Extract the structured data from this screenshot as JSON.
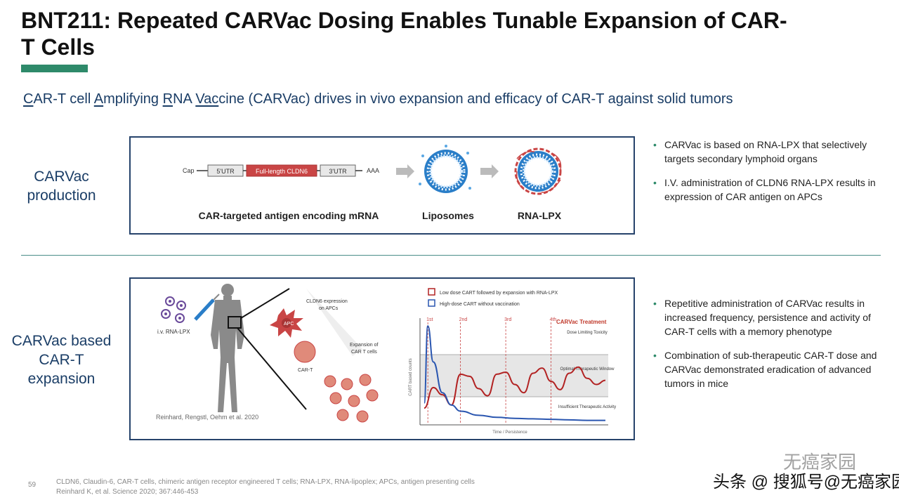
{
  "header": {
    "title": "BNT211: Repeated CARVac Dosing Enables Tunable Expansion of CAR-T Cells"
  },
  "subtitle": {
    "segments": [
      {
        "text": "C",
        "u": true
      },
      {
        "text": "AR-T cell ",
        "u": false
      },
      {
        "text": "A",
        "u": true
      },
      {
        "text": "mplifying  ",
        "u": false
      },
      {
        "text": "R",
        "u": true
      },
      {
        "text": "NA ",
        "u": false
      },
      {
        "text": "Vac",
        "u": true
      },
      {
        "text": "cine (CARVac) drives in vivo expansion and efficacy of CAR-T against solid tumors",
        "u": false
      }
    ]
  },
  "sections": {
    "production_label": "CARVac production",
    "expansion_label": "CARVac based CAR-T expansion"
  },
  "production_panel": {
    "mrna": {
      "cap": "Cap",
      "utr5": "5'UTR",
      "gene": "Full-length CLDN6",
      "utr3": "3'UTR",
      "polya": "AAA"
    },
    "caption_mrna": "CAR-targeted antigen encoding mRNA",
    "caption_lipo": "Liposomes",
    "caption_lpx": "RNA-LPX"
  },
  "expansion_panel": {
    "iv_label": "i.v. RNA-LPX",
    "cldn6_label_1": "CLDN6 expression",
    "cldn6_label_2": "on APCs",
    "apc_label": "APC",
    "cart_label": "CAR-T",
    "expansion_label_1": "Expansion of",
    "expansion_label_2": "CAR T cells",
    "citation": "Reinhard, Rengstl, Oehm et al. 2020"
  },
  "chart_data": {
    "type": "line",
    "title": "CARVac Treatment",
    "xlabel": "Time / Persistence",
    "ylabel": "CART based counts",
    "dose_markers": [
      "1st",
      "2nd",
      "3rd",
      "4th"
    ],
    "zones": [
      "Dose Limiting Toxicity",
      "Optimal Therapeutic Window",
      "Insufficient Therapeutic Activity"
    ],
    "series": [
      {
        "name": "Low dose CART followed by expansion with RNA-LPX",
        "color": "#b22222",
        "x": [
          0,
          0.5,
          1,
          1.5,
          2,
          2.5,
          3,
          3.5,
          4,
          4.5,
          5,
          5.5,
          6,
          6.5,
          7,
          7.5,
          8,
          8.5,
          9,
          9.5,
          10
        ],
        "y": [
          1.5,
          3.5,
          2.8,
          1.8,
          4.8,
          4.6,
          3.4,
          2.7,
          4.8,
          5.0,
          3.8,
          3.0,
          4.9,
          5.4,
          4.1,
          3.3,
          4.9,
          5.5,
          4.4,
          3.8,
          4.2
        ]
      },
      {
        "name": "High-dose CART without vaccination",
        "color": "#2a56b0",
        "x": [
          0,
          0.2,
          0.5,
          1,
          1.5,
          2,
          3,
          4,
          5,
          6,
          7,
          8,
          9,
          10
        ],
        "y": [
          2.0,
          9.5,
          6.0,
          3.0,
          1.8,
          1.2,
          0.8,
          0.6,
          0.5,
          0.45,
          0.4,
          0.35,
          0.3,
          0.3
        ]
      }
    ],
    "colors": {
      "low_dose": "#b22222",
      "high_dose": "#2a56b0",
      "title": "#c0392b"
    },
    "legend_position": "top"
  },
  "bullets_top": [
    "CARVac is based on RNA-LPX that selectively targets secondary lymphoid organs",
    "I.V. administration of CLDN6 RNA-LPX results in expression of CAR antigen on APCs"
  ],
  "bullets_bottom": [
    "Repetitive administration of CARVac results in increased frequency, persistence and activity of CAR-T cells with a memory phenotype",
    "Combination of sub-therapeutic CAR-T dose and CARVac demonstrated eradication of advanced tumors in mice"
  ],
  "footer": {
    "page": "59",
    "note_1": "CLDN6, Claudin-6, CAR-T cells, chimeric antigen receptor engineered T cells; RNA-LPX, RNA-lipoplex; APCs, antigen presenting cells",
    "note_2": "Reinhard K, et al. Science 2020; 367:446-453"
  },
  "watermark": {
    "line1": "无癌家园",
    "line2": "头条 @ 搜狐号@无癌家园"
  }
}
